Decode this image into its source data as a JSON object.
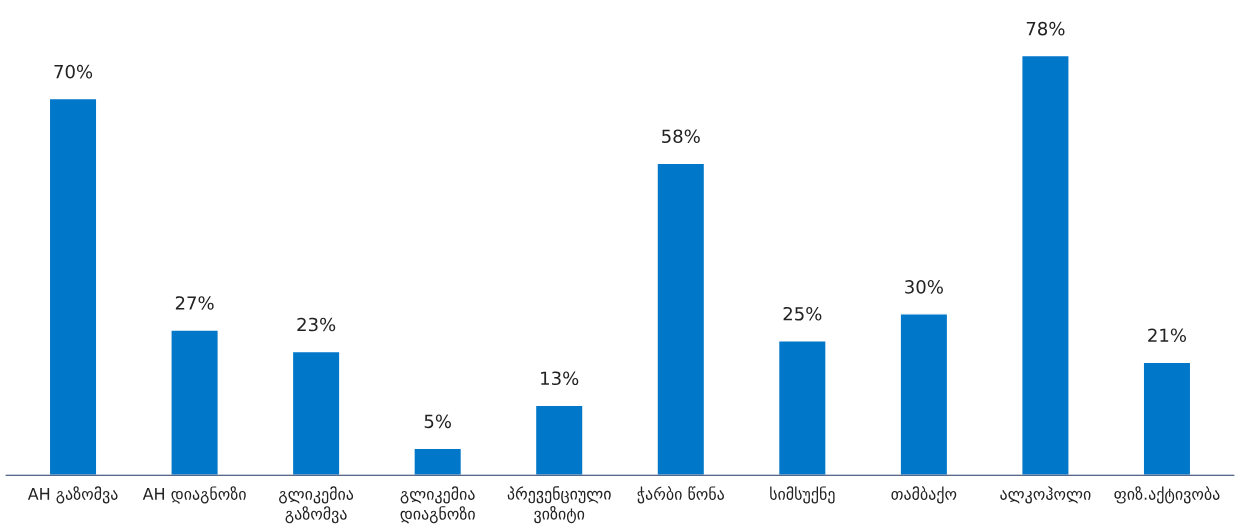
{
  "chart_data": {
    "type": "bar",
    "categories": [
      "AH გაზომვა",
      "AH დიაგნოზი",
      "გლიკემია გაზომვა",
      "გლიკემია დიაგნოზი",
      "პრევენციული ვიზიტი",
      "ჭარბი წონა",
      "სიმსუქნე",
      "თამბაქო",
      "ალკოჰოლი",
      "ფიზ.აქტივობა"
    ],
    "values": [
      70,
      27,
      23,
      5,
      13,
      58,
      25,
      30,
      78,
      21
    ],
    "value_labels": [
      "70%",
      "27%",
      "23%",
      "5%",
      "13%",
      "58%",
      "25%",
      "30%",
      "78%",
      "21%"
    ],
    "color": "#0077c8"
  }
}
